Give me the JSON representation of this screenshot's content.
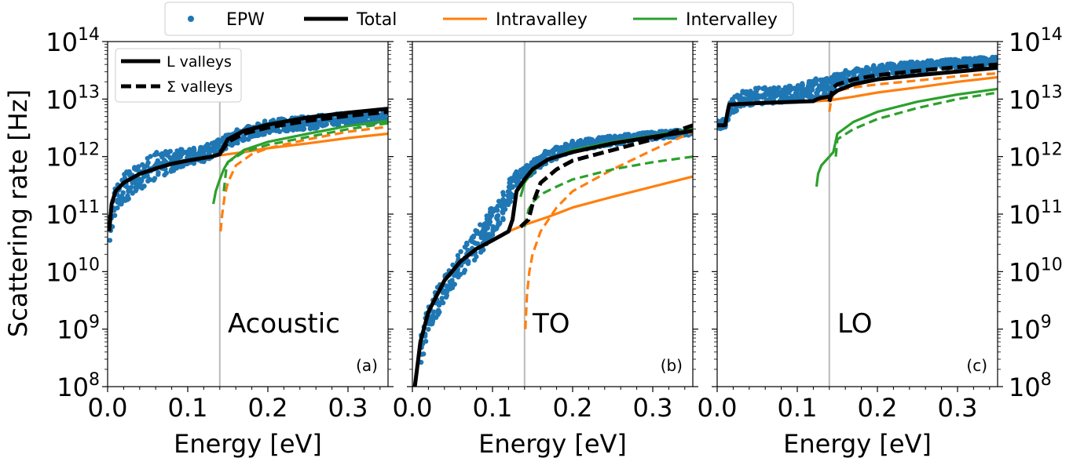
{
  "figure": {
    "ylabel": "Scattering rate [Hz]",
    "legend": [
      {
        "label": "EPW",
        "color": "#1f77b4",
        "style": "marker"
      },
      {
        "label": "Total",
        "color": "#000000",
        "style": "line"
      },
      {
        "label": "Intravalley",
        "color": "#ff7f0e",
        "style": "line"
      },
      {
        "label": "Intervalley",
        "color": "#2ca02c",
        "style": "line"
      }
    ],
    "inner_legend": [
      {
        "label": "L valleys",
        "style": "solid"
      },
      {
        "label": "Σ valleys",
        "style": "dashed"
      }
    ],
    "colors": {
      "epw": "#1f77b4",
      "total": "#000000",
      "intra": "#ff7f0e",
      "inter": "#2ca02c",
      "vline": "#bbbbbb"
    }
  },
  "chart_data": [
    {
      "type": "line",
      "panel": "(a)",
      "title": "Acoustic",
      "xlabel": "Energy [eV]",
      "ylabel": "Scattering rate [Hz]",
      "xlim": [
        0,
        0.35
      ],
      "ylim": [
        100000000.0,
        100000000000000.0
      ],
      "yscale": "log",
      "xticks": [
        "0.0",
        "0.1",
        "0.2",
        "0.3"
      ],
      "yticks": [
        {
          "base": "10",
          "exp": "8"
        },
        {
          "base": "10",
          "exp": "9"
        },
        {
          "base": "10",
          "exp": "10"
        },
        {
          "base": "10",
          "exp": "11"
        },
        {
          "base": "10",
          "exp": "12"
        },
        {
          "base": "10",
          "exp": "13"
        },
        {
          "base": "10",
          "exp": "14"
        }
      ],
      "vline": 0.14,
      "epw_band": {
        "x": [
          0.002,
          0.005,
          0.01,
          0.02,
          0.04,
          0.06,
          0.08,
          0.1,
          0.12,
          0.14,
          0.15,
          0.17,
          0.2,
          0.25,
          0.3,
          0.35
        ],
        "lower": [
          25000000000.0,
          50000000000.0,
          90000000000.0,
          150000000000.0,
          250000000000.0,
          400000000000.0,
          550000000000.0,
          700000000000.0,
          800000000000.0,
          1200000000000.0,
          1400000000000.0,
          1900000000000.0,
          2500000000000.0,
          3000000000000.0,
          3600000000000.0,
          3800000000000.0
        ],
        "upper": [
          90000000000.0,
          200000000000.0,
          300000000000.0,
          500000000000.0,
          800000000000.0,
          1200000000000.0,
          1300000000000.0,
          1400000000000.0,
          1500000000000.0,
          2200000000000.0,
          2600000000000.0,
          3400000000000.0,
          4400000000000.0,
          5000000000000.0,
          5800000000000.0,
          6200000000000.0
        ]
      },
      "series": [
        {
          "name": "Total L valleys",
          "kind": "total",
          "dash": false,
          "x": [
            0.002,
            0.005,
            0.01,
            0.02,
            0.04,
            0.06,
            0.08,
            0.1,
            0.12,
            0.13,
            0.14,
            0.145,
            0.15,
            0.17,
            0.2,
            0.25,
            0.3,
            0.35
          ],
          "y": [
            50000000000.0,
            150000000000.0,
            250000000000.0,
            350000000000.0,
            500000000000.0,
            620000000000.0,
            750000000000.0,
            850000000000.0,
            950000000000.0,
            1000000000000.0,
            1100000000000.0,
            1500000000000.0,
            2000000000000.0,
            2800000000000.0,
            3600000000000.0,
            4800000000000.0,
            5800000000000.0,
            6800000000000.0
          ]
        },
        {
          "name": "Total Σ valleys",
          "kind": "total",
          "dash": true,
          "x": [
            0.14,
            0.145,
            0.15,
            0.17,
            0.2,
            0.25,
            0.3,
            0.35
          ],
          "y": [
            1200000000000.0,
            1400000000000.0,
            1800000000000.0,
            2500000000000.0,
            3200000000000.0,
            4200000000000.0,
            5100000000000.0,
            6000000000000.0
          ]
        },
        {
          "name": "Intravalley L valleys",
          "kind": "intra",
          "dash": false,
          "x": [
            0.002,
            0.005,
            0.01,
            0.02,
            0.04,
            0.06,
            0.08,
            0.1,
            0.12,
            0.14,
            0.17,
            0.2,
            0.25,
            0.3,
            0.35
          ],
          "y": [
            50000000000.0,
            150000000000.0,
            250000000000.0,
            350000000000.0,
            500000000000.0,
            620000000000.0,
            750000000000.0,
            850000000000.0,
            950000000000.0,
            1050000000000.0,
            1200000000000.0,
            1400000000000.0,
            1700000000000.0,
            2100000000000.0,
            2500000000000.0
          ]
        },
        {
          "name": "Intravalley Σ valleys",
          "kind": "intra",
          "dash": true,
          "x": [
            0.141,
            0.143,
            0.146,
            0.15,
            0.16,
            0.18,
            0.2,
            0.25,
            0.3,
            0.35
          ],
          "y": [
            50000000000.0,
            100000000000.0,
            200000000000.0,
            350000000000.0,
            700000000000.0,
            1100000000000.0,
            1400000000000.0,
            2000000000000.0,
            2700000000000.0,
            3300000000000.0
          ]
        },
        {
          "name": "Intervalley L valleys",
          "kind": "inter",
          "dash": false,
          "x": [
            0.132,
            0.135,
            0.14,
            0.145,
            0.15,
            0.17,
            0.2,
            0.25,
            0.3,
            0.35
          ],
          "y": [
            150000000000.0,
            250000000000.0,
            400000000000.0,
            600000000000.0,
            800000000000.0,
            1300000000000.0,
            1800000000000.0,
            2500000000000.0,
            3400000000000.0,
            4200000000000.0
          ]
        },
        {
          "name": "Intervalley Σ valleys",
          "kind": "inter",
          "dash": true,
          "x": [
            0.145,
            0.148,
            0.15,
            0.17,
            0.2,
            0.25,
            0.3,
            0.35
          ],
          "y": [
            250000000000.0,
            600000000000.0,
            800000000000.0,
            1200000000000.0,
            1600000000000.0,
            2200000000000.0,
            3000000000000.0,
            3800000000000.0
          ]
        }
      ]
    },
    {
      "type": "line",
      "panel": "(b)",
      "title": "TO",
      "xlabel": "Energy [eV]",
      "xlim": [
        0,
        0.35
      ],
      "ylim": [
        100000000.0,
        100000000000000.0
      ],
      "yscale": "log",
      "xticks": [
        "0.0",
        "0.1",
        "0.2",
        "0.3"
      ],
      "yticks": [],
      "vline": 0.14,
      "epw_band": {
        "x": [
          0.01,
          0.02,
          0.03,
          0.05,
          0.07,
          0.09,
          0.1,
          0.11,
          0.12,
          0.13,
          0.14,
          0.15,
          0.17,
          0.2,
          0.25,
          0.3,
          0.35
        ],
        "lower": [
          200000000.0,
          800000000.0,
          1500000000.0,
          5000000000.0,
          12000000000.0,
          25000000000.0,
          40000000000.0,
          60000000000.0,
          120000000000.0,
          300000000000.0,
          400000000000.0,
          500000000000.0,
          800000000000.0,
          1200000000000.0,
          1600000000000.0,
          2000000000000.0,
          2300000000000.0
        ],
        "upper": [
          1000000000.0,
          2500000000.0,
          5000000000.0,
          15000000000.0,
          35000000000.0,
          90000000000.0,
          140000000000.0,
          200000000000.0,
          400000000000.0,
          550000000000.0,
          700000000000.0,
          900000000000.0,
          1400000000000.0,
          1900000000000.0,
          2300000000000.0,
          2700000000000.0,
          3000000000000.0
        ]
      },
      "series": [
        {
          "name": "Total L valleys",
          "kind": "total",
          "dash": false,
          "x": [
            0.003,
            0.01,
            0.02,
            0.04,
            0.06,
            0.08,
            0.1,
            0.12,
            0.125,
            0.13,
            0.14,
            0.15,
            0.17,
            0.2,
            0.25,
            0.3,
            0.35
          ],
          "y": [
            100000000.0,
            600000000.0,
            2000000000.0,
            7000000000.0,
            15000000000.0,
            25000000000.0,
            35000000000.0,
            50000000000.0,
            80000000000.0,
            250000000000.0,
            400000000000.0,
            600000000000.0,
            900000000000.0,
            1200000000000.0,
            1700000000000.0,
            2200000000000.0,
            2800000000000.0
          ]
        },
        {
          "name": "Total Σ valleys",
          "kind": "total",
          "dash": true,
          "x": [
            0.135,
            0.14,
            0.145,
            0.15,
            0.16,
            0.18,
            0.2,
            0.25,
            0.3,
            0.35
          ],
          "y": [
            60000000000.0,
            70000000000.0,
            80000000000.0,
            150000000000.0,
            350000000000.0,
            600000000000.0,
            850000000000.0,
            1300000000000.0,
            2000000000000.0,
            3500000000000.0
          ]
        },
        {
          "name": "Intravalley L valleys",
          "kind": "intra",
          "dash": false,
          "x": [
            0.003,
            0.01,
            0.02,
            0.04,
            0.06,
            0.08,
            0.1,
            0.12,
            0.14,
            0.17,
            0.2,
            0.25,
            0.3,
            0.35
          ],
          "y": [
            100000000.0,
            600000000.0,
            2000000000.0,
            7000000000.0,
            15000000000.0,
            25000000000.0,
            35000000000.0,
            50000000000.0,
            65000000000.0,
            90000000000.0,
            130000000000.0,
            200000000000.0,
            300000000000.0,
            450000000000.0
          ]
        },
        {
          "name": "Intravalley Σ valleys",
          "kind": "intra",
          "dash": true,
          "x": [
            0.141,
            0.143,
            0.146,
            0.15,
            0.16,
            0.18,
            0.2,
            0.25,
            0.3,
            0.35
          ],
          "y": [
            1000000000.0,
            4000000000.0,
            10000000000.0,
            20000000000.0,
            50000000000.0,
            130000000000.0,
            250000000000.0,
            600000000000.0,
            1300000000000.0,
            2700000000000.0
          ]
        },
        {
          "name": "Intervalley L valleys",
          "kind": "inter",
          "dash": false,
          "x": [
            0.135,
            0.14,
            0.145,
            0.15,
            0.16,
            0.18,
            0.2,
            0.25,
            0.3,
            0.35
          ],
          "y": [
            200000000000.0,
            350000000000.0,
            450000000000.0,
            550000000000.0,
            750000000000.0,
            1000000000000.0,
            1300000000000.0,
            1800000000000.0,
            2300000000000.0,
            3000000000000.0
          ]
        },
        {
          "name": "Intervalley Σ valleys",
          "kind": "inter",
          "dash": true,
          "x": [
            0.14,
            0.145,
            0.15,
            0.16,
            0.18,
            0.2,
            0.25,
            0.3,
            0.35
          ],
          "y": [
            60000000000.0,
            120000000000.0,
            160000000000.0,
            220000000000.0,
            300000000000.0,
            400000000000.0,
            600000000000.0,
            800000000000.0,
            1000000000000.0
          ]
        }
      ]
    },
    {
      "type": "line",
      "panel": "(c)",
      "title": "LO",
      "xlabel": "Energy [eV]",
      "xlim": [
        0,
        0.35
      ],
      "ylim": [
        100000000.0,
        100000000000000.0
      ],
      "yscale": "log",
      "xticks": [
        "0.0",
        "0.1",
        "0.2",
        "0.3"
      ],
      "yticks": [
        {
          "base": "10",
          "exp": "8"
        },
        {
          "base": "10",
          "exp": "9"
        },
        {
          "base": "10",
          "exp": "10"
        },
        {
          "base": "10",
          "exp": "11"
        },
        {
          "base": "10",
          "exp": "12"
        },
        {
          "base": "10",
          "exp": "13"
        },
        {
          "base": "10",
          "exp": "14"
        }
      ],
      "vline": 0.14,
      "epw_band": {
        "x": [
          0.0,
          0.005,
          0.012,
          0.015,
          0.03,
          0.05,
          0.07,
          0.09,
          0.1,
          0.12,
          0.14,
          0.15,
          0.17,
          0.2,
          0.25,
          0.3,
          0.35
        ],
        "lower": [
          3000000000000.0,
          3000000000000.0,
          3000000000000.0,
          5000000000000.0,
          7000000000000.0,
          8000000000000.0,
          8500000000000.0,
          9000000000000.0,
          9500000000000.0,
          10000000000000.0,
          12000000000000.0,
          16000000000000.0,
          20000000000000.0,
          25000000000000.0,
          30000000000000.0,
          35000000000000.0,
          40000000000000.0
        ],
        "upper": [
          4500000000000.0,
          4500000000000.0,
          4500000000000.0,
          9000000000000.0,
          14000000000000.0,
          16000000000000.0,
          16000000000000.0,
          17000000000000.0,
          18000000000000.0,
          22000000000000.0,
          26000000000000.0,
          30000000000000.0,
          35000000000000.0,
          40000000000000.0,
          45000000000000.0,
          50000000000000.0,
          55000000000000.0
        ]
      },
      "series": [
        {
          "name": "Total L valleys",
          "kind": "total",
          "dash": false,
          "x": [
            0.0,
            0.01,
            0.013,
            0.015,
            0.05,
            0.1,
            0.12,
            0.125,
            0.13,
            0.14,
            0.15,
            0.17,
            0.2,
            0.25,
            0.3,
            0.35
          ],
          "y": [
            3500000000000.0,
            3500000000000.0,
            6000000000000.0,
            8000000000000.0,
            8500000000000.0,
            9000000000000.0,
            9200000000000.0,
            10000000000000.0,
            10500000000000.0,
            11000000000000.0,
            14000000000000.0,
            18000000000000.0,
            22000000000000.0,
            26000000000000.0,
            30000000000000.0,
            35000000000000.0
          ]
        },
        {
          "name": "Total Σ valleys",
          "kind": "total",
          "dash": true,
          "x": [
            0.14,
            0.145,
            0.15,
            0.17,
            0.2,
            0.25,
            0.3,
            0.35
          ],
          "y": [
            9000000000000.0,
            16000000000000.0,
            18000000000000.0,
            22000000000000.0,
            26000000000000.0,
            31000000000000.0,
            36000000000000.0,
            40000000000000.0
          ]
        },
        {
          "name": "Intravalley L valleys",
          "kind": "intra",
          "dash": false,
          "x": [
            0.0,
            0.01,
            0.013,
            0.015,
            0.05,
            0.1,
            0.14,
            0.17,
            0.2,
            0.25,
            0.3,
            0.35
          ],
          "y": [
            3500000000000.0,
            3500000000000.0,
            6000000000000.0,
            8000000000000.0,
            8500000000000.0,
            8800000000000.0,
            9500000000000.0,
            11000000000000.0,
            13000000000000.0,
            16000000000000.0,
            20000000000000.0,
            24000000000000.0
          ]
        },
        {
          "name": "Intravalley Σ valleys",
          "kind": "intra",
          "dash": true,
          "x": [
            0.14,
            0.142,
            0.145,
            0.15,
            0.17,
            0.2,
            0.25,
            0.3,
            0.35
          ],
          "y": [
            6000000000000.0,
            9000000000000.0,
            12000000000000.0,
            14000000000000.0,
            16000000000000.0,
            18000000000000.0,
            21000000000000.0,
            25000000000000.0,
            28000000000000.0
          ]
        },
        {
          "name": "Intervalley L valleys",
          "kind": "inter",
          "dash": false,
          "x": [
            0.124,
            0.126,
            0.13,
            0.14,
            0.145,
            0.15,
            0.17,
            0.2,
            0.25,
            0.3,
            0.35
          ],
          "y": [
            300000000000.0,
            500000000000.0,
            700000000000.0,
            1000000000000.0,
            1200000000000.0,
            2500000000000.0,
            4000000000000.0,
            6000000000000.0,
            9000000000000.0,
            12000000000000.0,
            15000000000000.0
          ]
        },
        {
          "name": "Intervalley Σ valleys",
          "kind": "inter",
          "dash": true,
          "x": [
            0.148,
            0.15,
            0.17,
            0.2,
            0.25,
            0.3,
            0.35
          ],
          "y": [
            1000000000000.0,
            2000000000000.0,
            3000000000000.0,
            4500000000000.0,
            7000000000000.0,
            10000000000000.0,
            13000000000000.0
          ]
        }
      ]
    }
  ]
}
